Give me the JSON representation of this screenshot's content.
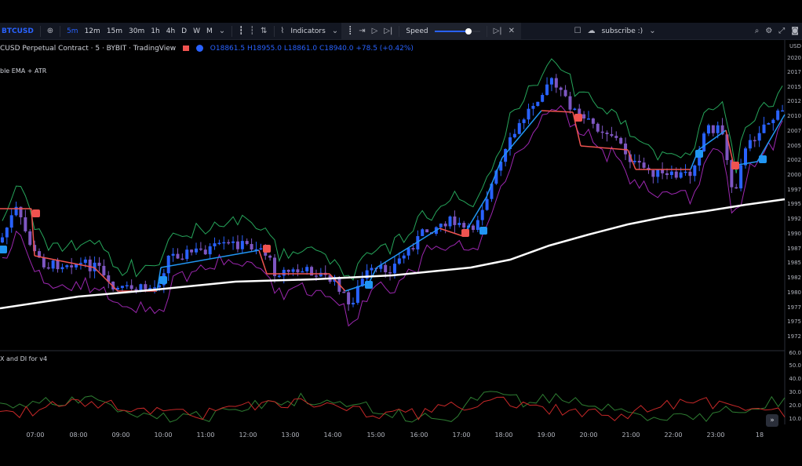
{
  "toolbar": {
    "symbol": "BTCUSD",
    "add_symbol_icon": "plus-circle-icon",
    "intervals": [
      "5m",
      "12m",
      "15m",
      "30m",
      "1h",
      "4h",
      "D",
      "W",
      "M"
    ],
    "active_interval": "5m",
    "indicators_label": "Indicators",
    "speed_label": "Speed",
    "speed_level_fraction": 0.75,
    "layout_label": "subscribe :)"
  },
  "legend": {
    "title": "CUSD Perpetual Contract · 5 · BYBIT · TradingView",
    "open": "O18861.5",
    "high": "H18955.0",
    "low": "L18861.0",
    "close": "C18940.0",
    "change": "+78.5 (+0.42%)"
  },
  "indicator_legend": "ble EMA + ATR",
  "adx_legend": "X and DI for v4",
  "colors": {
    "bull_candle": "#2962ff",
    "bear_candle": "#7e57c2",
    "upper_band": "#26a65b",
    "lower_band": "#9c27b0",
    "ema": "#ffffff",
    "trend_up": "#2196f3",
    "trend_down": "#ef5350",
    "buy_label": "#2196f3",
    "sell_label": "#ef5350",
    "adx_green": "#2e7d32",
    "adx_red": "#c62828"
  },
  "price_axis": {
    "currency": "USD",
    "ticks": [
      "2020",
      "2017",
      "2015",
      "2012",
      "2010",
      "2007",
      "2005",
      "2002",
      "2000",
      "1997",
      "1995",
      "1992",
      "1990",
      "1987",
      "1985",
      "1982",
      "1980",
      "1977",
      "1975",
      "1972"
    ]
  },
  "adx_axis": {
    "ticks": [
      "60.0",
      "50.0",
      "40.0",
      "30.0",
      "20.0",
      "10.0"
    ]
  },
  "time_axis": {
    "ticks": [
      "07:00",
      "08:00",
      "09:00",
      "10:00",
      "11:00",
      "12:00",
      "13:00",
      "14:00",
      "15:00",
      "16:00",
      "17:00",
      "18:00",
      "19:00",
      "20:00",
      "21:00",
      "22:00",
      "23:00",
      "18"
    ]
  },
  "scroll_icon": "double-chevron-right-icon"
}
